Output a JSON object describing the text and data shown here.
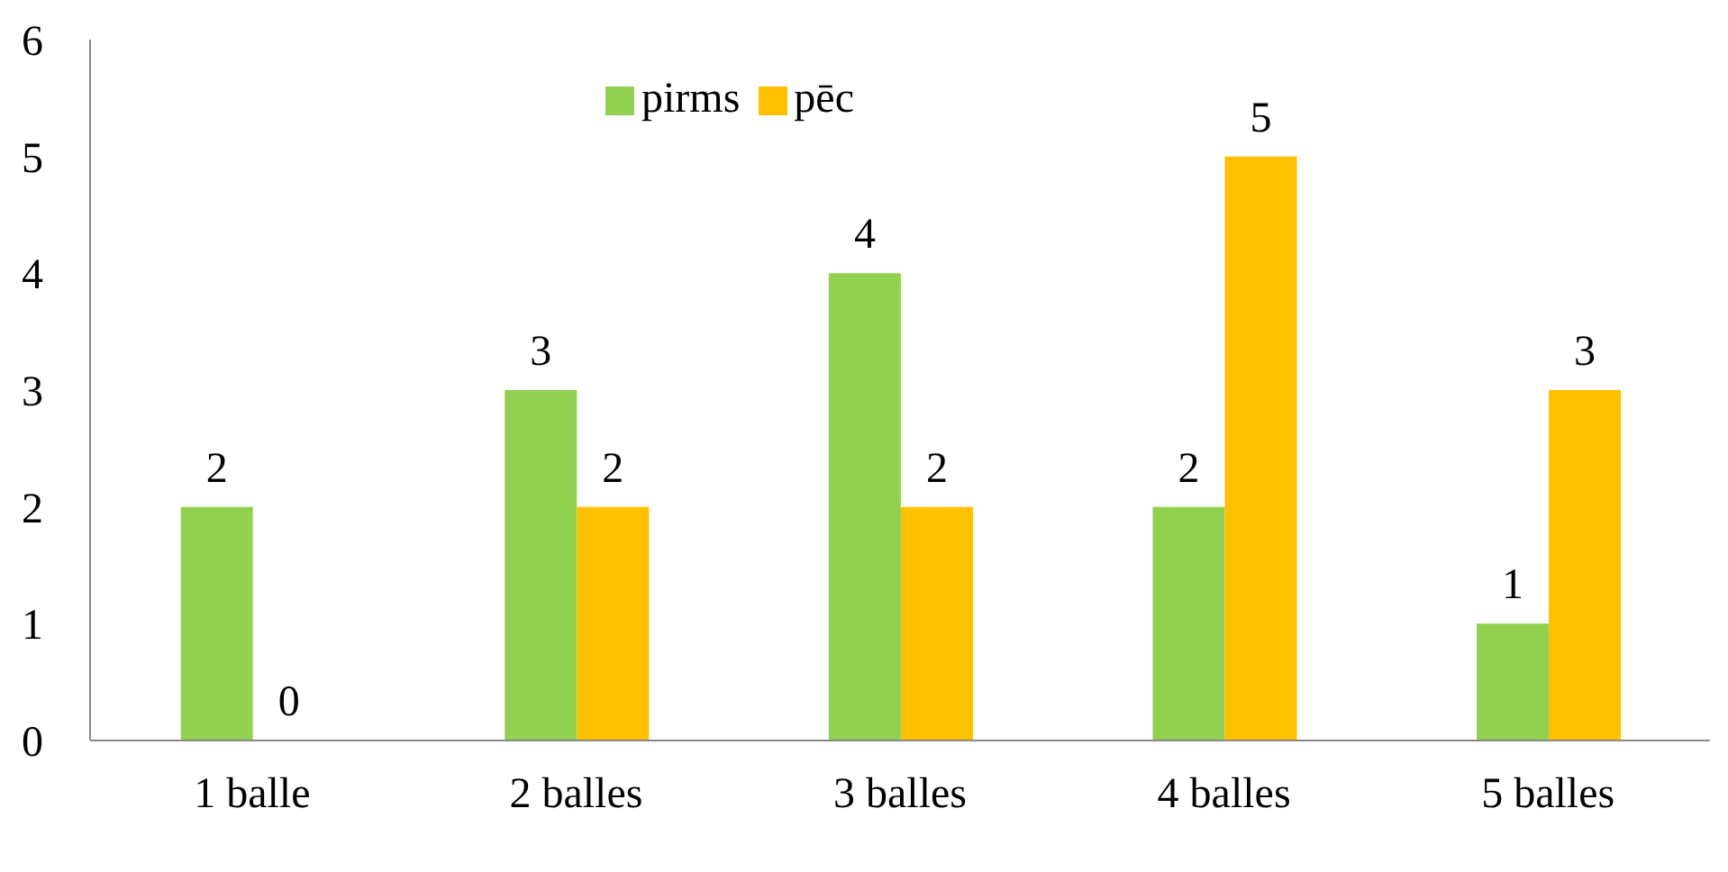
{
  "chart_data": {
    "type": "bar",
    "categories": [
      "1 balle",
      "2 balles",
      "3 balles",
      "4 balles",
      "5 balles"
    ],
    "series": [
      {
        "name": "pirms",
        "color": "#92d050",
        "values": [
          2,
          3,
          4,
          2,
          1
        ]
      },
      {
        "name": "pēc",
        "color": "#ffc000",
        "values": [
          0,
          2,
          2,
          5,
          3
        ]
      }
    ],
    "ylim": [
      0,
      6
    ],
    "yticks": [
      0,
      1,
      2,
      3,
      4,
      5,
      6
    ],
    "grid": false,
    "legend": "top",
    "data_labels": true
  }
}
